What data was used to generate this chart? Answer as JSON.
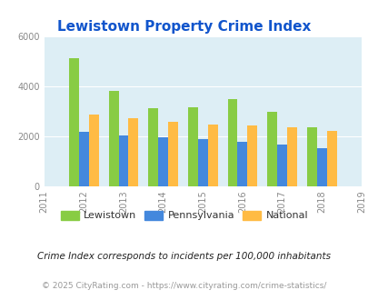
{
  "title": "Lewistown Property Crime Index",
  "years": [
    2012,
    2013,
    2014,
    2015,
    2016,
    2017,
    2018
  ],
  "lewistown": [
    5100,
    3820,
    3100,
    3150,
    3480,
    2980,
    2350
  ],
  "pennsylvania": [
    2150,
    2040,
    1960,
    1860,
    1760,
    1660,
    1520
  ],
  "national": [
    2870,
    2720,
    2570,
    2460,
    2420,
    2360,
    2200
  ],
  "lewistown_color": "#88cc44",
  "pennsylvania_color": "#4488dd",
  "national_color": "#ffbb44",
  "bg_color": "#ddeef5",
  "title_color": "#1155cc",
  "xlim": [
    2011,
    2019
  ],
  "ylim": [
    0,
    6000
  ],
  "yticks": [
    0,
    2000,
    4000,
    6000
  ],
  "xticks": [
    2011,
    2012,
    2013,
    2014,
    2015,
    2016,
    2017,
    2018,
    2019
  ],
  "bar_width": 0.25,
  "legend_labels": [
    "Lewistown",
    "Pennsylvania",
    "National"
  ],
  "footnote1": "Crime Index corresponds to incidents per 100,000 inhabitants",
  "footnote2": "© 2025 CityRating.com - https://www.cityrating.com/crime-statistics/",
  "footnote1_color": "#222222",
  "footnote2_color": "#999999",
  "tick_color": "#888888"
}
